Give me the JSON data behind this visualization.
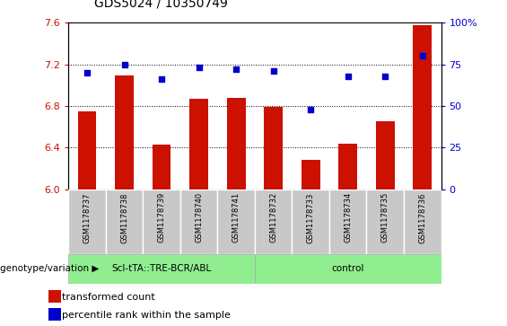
{
  "title": "GDS5024 / 10350749",
  "samples": [
    "GSM1178737",
    "GSM1178738",
    "GSM1178739",
    "GSM1178740",
    "GSM1178741",
    "GSM1178732",
    "GSM1178733",
    "GSM1178734",
    "GSM1178735",
    "GSM1178736"
  ],
  "bar_values": [
    6.75,
    7.09,
    6.43,
    6.87,
    6.88,
    6.79,
    6.28,
    6.44,
    6.65,
    7.58
  ],
  "scatter_percentile": [
    70,
    75,
    66,
    73,
    72,
    71,
    48,
    68,
    68,
    80
  ],
  "ylim_left": [
    6.0,
    7.6
  ],
  "ylim_right": [
    0,
    100
  ],
  "yticks_left": [
    6.0,
    6.4,
    6.8,
    7.2,
    7.6
  ],
  "yticks_right": [
    0,
    25,
    50,
    75,
    100
  ],
  "group1_label": "Scl-tTA::TRE-BCR/ABL",
  "group2_label": "control",
  "group1_indices": [
    0,
    1,
    2,
    3,
    4
  ],
  "group2_indices": [
    5,
    6,
    7,
    8,
    9
  ],
  "bar_color": "#cc1100",
  "scatter_color": "#0000cc",
  "group_bg": "#90ee90",
  "sample_bg": "#c8c8c8",
  "legend_tc": "transformed count",
  "legend_pr": "percentile rank within the sample",
  "genotype_label": "genotype/variation",
  "grid_color": "black",
  "title_fontsize": 10,
  "tick_fontsize": 8,
  "label_fontsize": 8
}
